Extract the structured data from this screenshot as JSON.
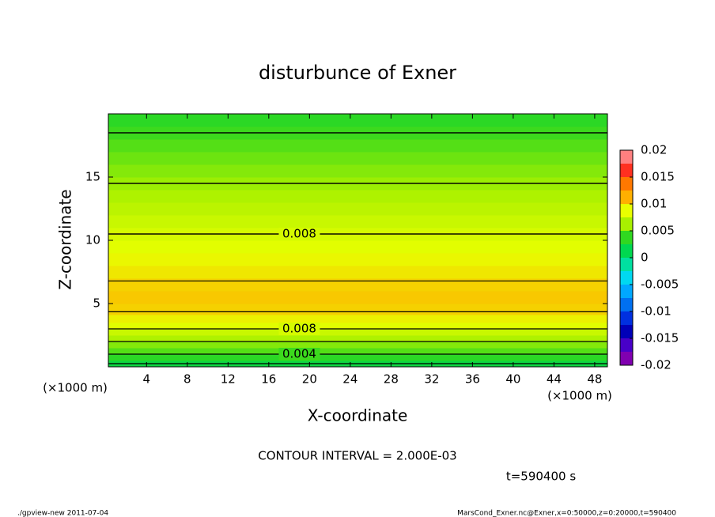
{
  "chart_data": {
    "type": "contour",
    "title": "disturbunce of Exner",
    "xlabel": "X-coordinate",
    "ylabel": "Z-coordinate",
    "x_unit": "(×1000 m)",
    "y_unit": "(×1000 m)",
    "xlim": [
      0.25,
      49.25
    ],
    "xticks": [
      4,
      8,
      12,
      16,
      20,
      24,
      28,
      32,
      36,
      40,
      44,
      48
    ],
    "ylim": [
      0,
      20
    ],
    "yticks": [
      5,
      10,
      15
    ],
    "profile": {
      "z": [
        0.25,
        0.75,
        1.25,
        1.75,
        2.25,
        2.75,
        3.25,
        3.75,
        4.5,
        5.5,
        6.5,
        7.5,
        8.5,
        9.5,
        10.5,
        11.5,
        12.5,
        13.5,
        14.5,
        15.5,
        16.5,
        17.5,
        18.5,
        19.5
      ],
      "values": [
        0.002,
        0.0035,
        0.0045,
        0.0055,
        0.0065,
        0.0075,
        0.0085,
        0.0092,
        0.0102,
        0.0105,
        0.0102,
        0.0095,
        0.009,
        0.0085,
        0.008,
        0.0075,
        0.007,
        0.0065,
        0.006,
        0.0055,
        0.005,
        0.0045,
        0.004,
        0.0035
      ]
    },
    "contour_interval": {
      "value": 0.002,
      "label": "CONTOUR INTERVAL = 2.000E-03"
    },
    "contour_labels": [
      0.004,
      0.008,
      0.008
    ],
    "colorbar": {
      "ticks": [
        -0.02,
        -0.015,
        -0.01,
        -0.005,
        0,
        0.005,
        0.01,
        0.015,
        0.02
      ],
      "step": 0.0025,
      "colors": [
        "#8000b0",
        "#4800c8",
        "#0000b8",
        "#0030e0",
        "#0070f0",
        "#00a8ff",
        "#00d8f0",
        "#00e0a0",
        "#00d850",
        "#30d820",
        "#a8f000",
        "#e8ff00",
        "#ffb000",
        "#ff7800",
        "#ff3020",
        "#ff8080"
      ]
    },
    "time_label": "t=590400 s",
    "footer_left": "./gpview-new  2011-07-04",
    "footer_right": "MarsCond_Exner.nc@Exner,x=0:50000,z=0:20000,t=590400"
  }
}
